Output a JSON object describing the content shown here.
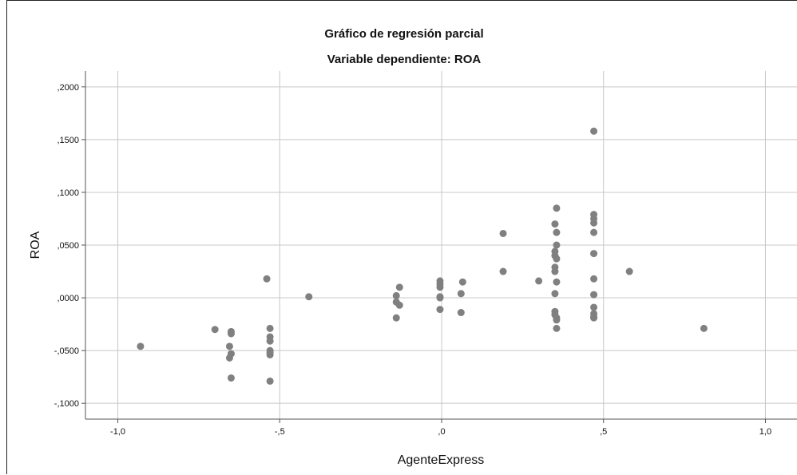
{
  "chart_data": {
    "type": "scatter",
    "title": "Gráfico de regresión parcial",
    "subtitle": "Variable dependiente: ROA",
    "xlabel": "AgenteExpress",
    "ylabel": "ROA",
    "xlim": [
      -1.1,
      1.1
    ],
    "ylim": [
      -0.115,
      0.215
    ],
    "x_ticks": [
      -1.0,
      -0.5,
      0.0,
      0.5,
      1.0
    ],
    "x_tick_labels": [
      "-1,0",
      "-,5",
      ",0",
      ",5",
      "1,0"
    ],
    "y_ticks": [
      0.2,
      0.15,
      0.1,
      0.05,
      0.0,
      -0.05,
      -0.1
    ],
    "y_tick_labels": [
      ",2000",
      ",1500",
      ",1000",
      ",0500",
      ",0000",
      "-,0500",
      "-,1000"
    ],
    "grid": true,
    "marker_color": "#808080",
    "gridline_color": "#c8c8c8",
    "points": [
      {
        "x": -0.93,
        "y": -0.046
      },
      {
        "x": -0.7,
        "y": -0.03
      },
      {
        "x": -0.655,
        "y": -0.046
      },
      {
        "x": -0.655,
        "y": -0.057
      },
      {
        "x": -0.65,
        "y": -0.034
      },
      {
        "x": -0.65,
        "y": -0.032
      },
      {
        "x": -0.65,
        "y": -0.053
      },
      {
        "x": -0.65,
        "y": -0.076
      },
      {
        "x": -0.54,
        "y": 0.018
      },
      {
        "x": -0.53,
        "y": -0.029
      },
      {
        "x": -0.53,
        "y": -0.037
      },
      {
        "x": -0.53,
        "y": -0.041
      },
      {
        "x": -0.53,
        "y": -0.05
      },
      {
        "x": -0.53,
        "y": -0.052
      },
      {
        "x": -0.53,
        "y": -0.054
      },
      {
        "x": -0.53,
        "y": -0.079
      },
      {
        "x": -0.41,
        "y": 0.001
      },
      {
        "x": -0.14,
        "y": 0.002
      },
      {
        "x": -0.14,
        "y": -0.004
      },
      {
        "x": -0.13,
        "y": -0.007
      },
      {
        "x": -0.13,
        "y": 0.01
      },
      {
        "x": -0.14,
        "y": -0.019
      },
      {
        "x": -0.005,
        "y": 0.016
      },
      {
        "x": -0.005,
        "y": 0.013
      },
      {
        "x": -0.005,
        "y": 0.01
      },
      {
        "x": -0.005,
        "y": 0.001
      },
      {
        "x": -0.005,
        "y": 0.0
      },
      {
        "x": -0.005,
        "y": -0.011
      },
      {
        "x": 0.065,
        "y": 0.015
      },
      {
        "x": 0.06,
        "y": 0.004
      },
      {
        "x": 0.06,
        "y": -0.014
      },
      {
        "x": 0.19,
        "y": 0.061
      },
      {
        "x": 0.19,
        "y": 0.025
      },
      {
        "x": 0.3,
        "y": 0.016
      },
      {
        "x": 0.355,
        "y": 0.085
      },
      {
        "x": 0.35,
        "y": 0.07
      },
      {
        "x": 0.355,
        "y": 0.062
      },
      {
        "x": 0.355,
        "y": 0.05
      },
      {
        "x": 0.35,
        "y": 0.044
      },
      {
        "x": 0.35,
        "y": 0.04
      },
      {
        "x": 0.355,
        "y": 0.037
      },
      {
        "x": 0.35,
        "y": 0.029
      },
      {
        "x": 0.35,
        "y": 0.025
      },
      {
        "x": 0.355,
        "y": 0.015
      },
      {
        "x": 0.35,
        "y": 0.004
      },
      {
        "x": 0.35,
        "y": -0.013
      },
      {
        "x": 0.35,
        "y": -0.016
      },
      {
        "x": 0.355,
        "y": -0.019
      },
      {
        "x": 0.355,
        "y": -0.021
      },
      {
        "x": 0.355,
        "y": -0.029
      },
      {
        "x": 0.47,
        "y": 0.158
      },
      {
        "x": 0.47,
        "y": 0.079
      },
      {
        "x": 0.47,
        "y": 0.075
      },
      {
        "x": 0.47,
        "y": 0.071
      },
      {
        "x": 0.47,
        "y": 0.062
      },
      {
        "x": 0.47,
        "y": 0.042
      },
      {
        "x": 0.47,
        "y": 0.018
      },
      {
        "x": 0.47,
        "y": 0.003
      },
      {
        "x": 0.47,
        "y": -0.009
      },
      {
        "x": 0.47,
        "y": -0.015
      },
      {
        "x": 0.47,
        "y": -0.018
      },
      {
        "x": 0.47,
        "y": -0.019
      },
      {
        "x": 0.58,
        "y": 0.025
      },
      {
        "x": 0.81,
        "y": -0.029
      }
    ]
  }
}
